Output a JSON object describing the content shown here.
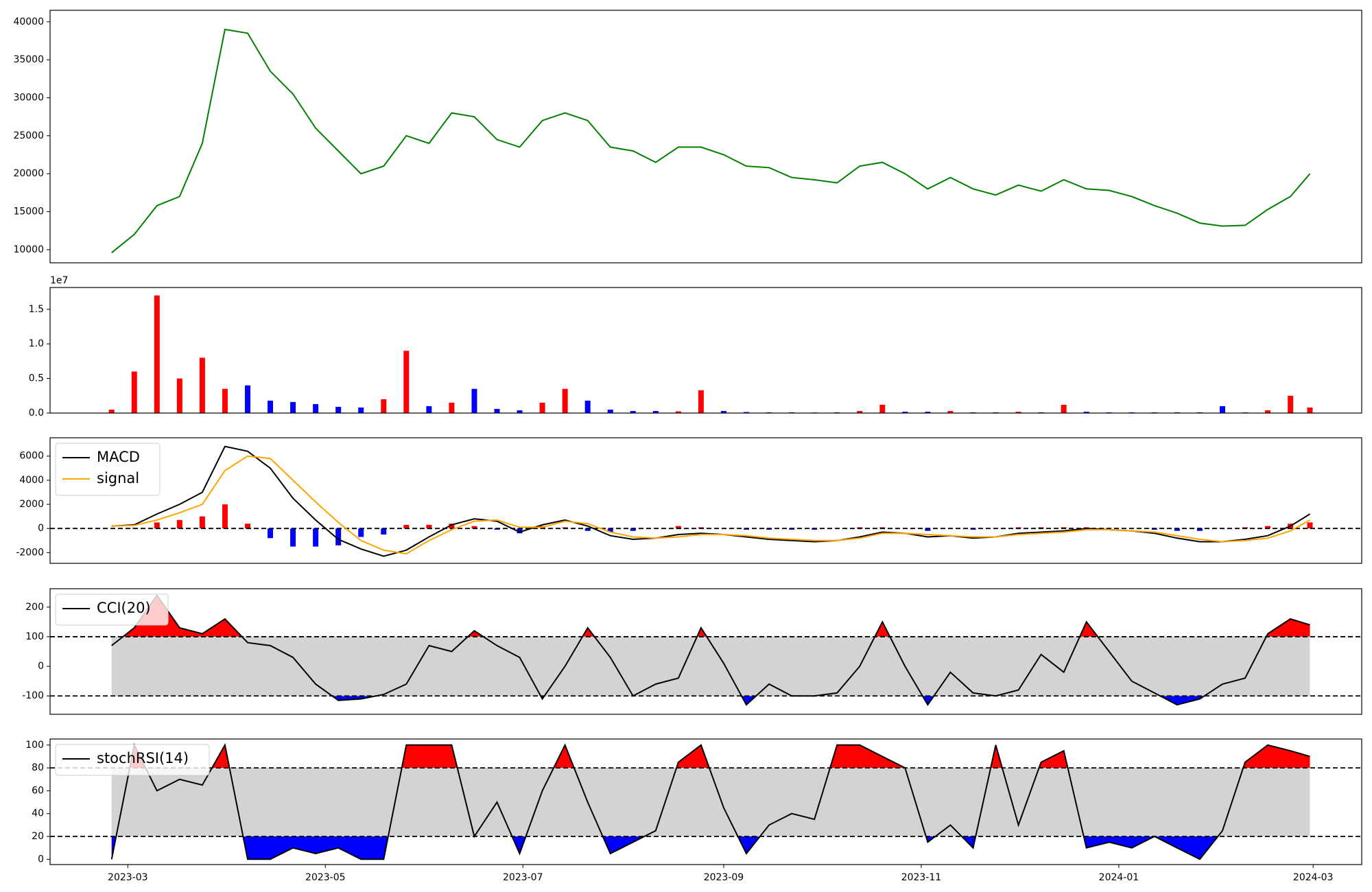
{
  "chart_data": [
    {
      "type": "line",
      "x": [
        "2023-02-24",
        "2023-03-03",
        "2023-03-10",
        "2023-03-17",
        "2023-03-24",
        "2023-03-31",
        "2023-04-07",
        "2023-04-14",
        "2023-04-21",
        "2023-04-28",
        "2023-05-05",
        "2023-05-12",
        "2023-05-19",
        "2023-05-26",
        "2023-06-02",
        "2023-06-09",
        "2023-06-16",
        "2023-06-23",
        "2023-06-30",
        "2023-07-07",
        "2023-07-14",
        "2023-07-21",
        "2023-07-28",
        "2023-08-04",
        "2023-08-11",
        "2023-08-18",
        "2023-08-25",
        "2023-09-01",
        "2023-09-08",
        "2023-09-15",
        "2023-09-22",
        "2023-09-29",
        "2023-10-06",
        "2023-10-13",
        "2023-10-20",
        "2023-10-27",
        "2023-11-03",
        "2023-11-10",
        "2023-11-17",
        "2023-11-24",
        "2023-12-01",
        "2023-12-08",
        "2023-12-15",
        "2023-12-22",
        "2023-12-29",
        "2024-01-05",
        "2024-01-12",
        "2024-01-19",
        "2024-01-26",
        "2024-02-02",
        "2024-02-09",
        "2024-02-16",
        "2024-02-23",
        "2024-02-29"
      ],
      "xlim": [
        "2023-02-05",
        "2024-03-16"
      ],
      "ylim": [
        8270,
        41520
      ],
      "yticks": [
        10000,
        15000,
        20000,
        25000,
        30000,
        35000,
        40000
      ],
      "series": [
        {
          "color": "green",
          "values": [
            9600,
            12000,
            15800,
            17000,
            24000,
            39000,
            38500,
            33500,
            30500,
            26000,
            23000,
            20000,
            21000,
            25000,
            24000,
            28000,
            27500,
            24500,
            23500,
            27000,
            28000,
            27000,
            23500,
            23000,
            21500,
            23500,
            23500,
            22500,
            21000,
            20800,
            19500,
            19200,
            18800,
            21000,
            21500,
            20000,
            18000,
            19500,
            18000,
            17200,
            18500,
            17700,
            19200,
            18000,
            17800,
            17000,
            15800,
            14800,
            13500,
            13100,
            13200,
            15300,
            17000,
            20000
          ]
        }
      ]
    },
    {
      "type": "bar",
      "x": [
        "2023-02-24",
        "2023-03-03",
        "2023-03-10",
        "2023-03-17",
        "2023-03-24",
        "2023-03-31",
        "2023-04-07",
        "2023-04-14",
        "2023-04-21",
        "2023-04-28",
        "2023-05-05",
        "2023-05-12",
        "2023-05-19",
        "2023-05-26",
        "2023-06-02",
        "2023-06-09",
        "2023-06-16",
        "2023-06-23",
        "2023-06-30",
        "2023-07-07",
        "2023-07-14",
        "2023-07-21",
        "2023-07-28",
        "2023-08-04",
        "2023-08-11",
        "2023-08-18",
        "2023-08-25",
        "2023-09-01",
        "2023-09-08",
        "2023-09-15",
        "2023-09-22",
        "2023-09-29",
        "2023-10-06",
        "2023-10-13",
        "2023-10-20",
        "2023-10-27",
        "2023-11-03",
        "2023-11-10",
        "2023-11-17",
        "2023-11-24",
        "2023-12-01",
        "2023-12-08",
        "2023-12-15",
        "2023-12-22",
        "2023-12-29",
        "2024-01-05",
        "2024-01-12",
        "2024-01-19",
        "2024-01-26",
        "2024-02-02",
        "2024-02-09",
        "2024-02-16",
        "2024-02-23",
        "2024-02-29"
      ],
      "xlim": [
        "2023-02-05",
        "2024-03-16"
      ],
      "ylim": [
        0,
        18150000
      ],
      "yticks": [
        {
          "value": 0,
          "label": "0.0"
        },
        {
          "value": 5000000,
          "label": "0.5"
        },
        {
          "value": 10000000,
          "label": "1.0"
        },
        {
          "value": 15000000,
          "label": "1.5"
        }
      ],
      "y_offset_label": "1e7",
      "up_color": "red",
      "down_color": "blue",
      "values": [
        500000,
        6000000,
        17000000,
        5000000,
        8000000,
        3500000,
        4000000,
        1800000,
        1600000,
        1300000,
        900000,
        800000,
        2000000,
        9000000,
        1000000,
        1500000,
        3500000,
        600000,
        400000,
        1500000,
        3500000,
        1800000,
        500000,
        300000,
        300000,
        250000,
        3300000,
        300000,
        150000,
        100000,
        100000,
        80000,
        100000,
        300000,
        1200000,
        200000,
        200000,
        300000,
        100000,
        100000,
        200000,
        100000,
        1200000,
        200000,
        100000,
        100000,
        100000,
        100000,
        100000,
        1000000,
        100000,
        400000,
        2500000,
        800000
      ]
    },
    {
      "type": "macd",
      "x": [
        "2023-02-24",
        "2023-03-03",
        "2023-03-10",
        "2023-03-17",
        "2023-03-24",
        "2023-03-31",
        "2023-04-07",
        "2023-04-14",
        "2023-04-21",
        "2023-04-28",
        "2023-05-05",
        "2023-05-12",
        "2023-05-19",
        "2023-05-26",
        "2023-06-02",
        "2023-06-09",
        "2023-06-16",
        "2023-06-23",
        "2023-06-30",
        "2023-07-07",
        "2023-07-14",
        "2023-07-21",
        "2023-07-28",
        "2023-08-04",
        "2023-08-11",
        "2023-08-18",
        "2023-08-25",
        "2023-09-01",
        "2023-09-08",
        "2023-09-15",
        "2023-09-22",
        "2023-09-29",
        "2023-10-06",
        "2023-10-13",
        "2023-10-20",
        "2023-10-27",
        "2023-11-03",
        "2023-11-10",
        "2023-11-17",
        "2023-11-24",
        "2023-12-01",
        "2023-12-08",
        "2023-12-15",
        "2023-12-22",
        "2023-12-29",
        "2024-01-05",
        "2024-01-12",
        "2024-01-19",
        "2024-01-26",
        "2024-02-02",
        "2024-02-09",
        "2024-02-16",
        "2024-02-23",
        "2024-02-29"
      ],
      "xlim": [
        "2023-02-05",
        "2024-03-16"
      ],
      "ylim": [
        -2890,
        7520
      ],
      "yticks": [
        -2000,
        0,
        2000,
        4000,
        6000
      ],
      "baseline": 0,
      "legend": "upper left",
      "series": [
        {
          "name": "MACD",
          "color": "black",
          "values": [
            200,
            300,
            1200,
            2000,
            3000,
            6800,
            6400,
            5000,
            2500,
            700,
            -900,
            -1700,
            -2300,
            -1800,
            -700,
            300,
            800,
            600,
            -300,
            300,
            700,
            200,
            -600,
            -900,
            -800,
            -500,
            -400,
            -500,
            -700,
            -900,
            -1000,
            -1100,
            -1000,
            -700,
            -300,
            -400,
            -700,
            -600,
            -800,
            -700,
            -400,
            -300,
            -200,
            0,
            -100,
            -200,
            -400,
            -800,
            -1100,
            -1100,
            -900,
            -600,
            200,
            1200
          ]
        },
        {
          "name": "signal",
          "color": "orange",
          "values": [
            200,
            250,
            700,
            1300,
            2000,
            4800,
            6000,
            5800,
            4000,
            2200,
            500,
            -1000,
            -1800,
            -2100,
            -1000,
            -100,
            600,
            700,
            100,
            100,
            600,
            400,
            -300,
            -700,
            -800,
            -700,
            -500,
            -500,
            -600,
            -800,
            -900,
            -1000,
            -1000,
            -800,
            -400,
            -400,
            -500,
            -600,
            -700,
            -700,
            -500,
            -400,
            -300,
            -100,
            -100,
            -200,
            -300,
            -600,
            -900,
            -1100,
            -1000,
            -800,
            -200,
            700
          ]
        }
      ],
      "histogram": {
        "pos_color": "red",
        "neg_color": "blue",
        "values": [
          0,
          50,
          500,
          700,
          1000,
          2000,
          400,
          -800,
          -1500,
          -1500,
          -1400,
          -700,
          -500,
          300,
          300,
          400,
          200,
          -100,
          -400,
          200,
          100,
          -200,
          -300,
          -200,
          0,
          200,
          100,
          0,
          -100,
          -100,
          -100,
          -100,
          0,
          100,
          100,
          0,
          -200,
          0,
          -100,
          0,
          100,
          100,
          100,
          100,
          0,
          0,
          -100,
          -200,
          -200,
          0,
          100,
          200,
          400,
          500
        ]
      }
    },
    {
      "type": "oscillator",
      "x": [
        "2023-02-24",
        "2023-03-03",
        "2023-03-10",
        "2023-03-17",
        "2023-03-24",
        "2023-03-31",
        "2023-04-07",
        "2023-04-14",
        "2023-04-21",
        "2023-04-28",
        "2023-05-05",
        "2023-05-12",
        "2023-05-19",
        "2023-05-26",
        "2023-06-02",
        "2023-06-09",
        "2023-06-16",
        "2023-06-23",
        "2023-06-30",
        "2023-07-07",
        "2023-07-14",
        "2023-07-21",
        "2023-07-28",
        "2023-08-04",
        "2023-08-11",
        "2023-08-18",
        "2023-08-25",
        "2023-09-01",
        "2023-09-08",
        "2023-09-15",
        "2023-09-22",
        "2023-09-29",
        "2023-10-06",
        "2023-10-13",
        "2023-10-20",
        "2023-10-27",
        "2023-11-03",
        "2023-11-10",
        "2023-11-17",
        "2023-11-24",
        "2023-12-01",
        "2023-12-08",
        "2023-12-15",
        "2023-12-22",
        "2023-12-29",
        "2024-01-05",
        "2024-01-12",
        "2024-01-19",
        "2024-01-26",
        "2024-02-02",
        "2024-02-09",
        "2024-02-16",
        "2024-02-23",
        "2024-02-29"
      ],
      "xlim": [
        "2023-02-05",
        "2024-03-16"
      ],
      "ylim": [
        -162,
        262
      ],
      "yticks": [
        -100,
        0,
        100,
        200
      ],
      "thresholds": [
        -100,
        100
      ],
      "band_color": "lightgray",
      "above_color": "red",
      "below_color": "blue",
      "legend": "upper left",
      "series": [
        {
          "name": "CCI(20)",
          "color": "black",
          "values": [
            70,
            130,
            240,
            130,
            110,
            160,
            80,
            70,
            30,
            -60,
            -115,
            -110,
            -95,
            -60,
            70,
            50,
            120,
            70,
            30,
            -110,
            0,
            130,
            30,
            -100,
            -60,
            -40,
            130,
            10,
            -130,
            -60,
            -100,
            -100,
            -90,
            0,
            150,
            0,
            -130,
            -20,
            -90,
            -100,
            -80,
            40,
            -20,
            150,
            50,
            -50,
            -90,
            -130,
            -110,
            -60,
            -40,
            110,
            160,
            140
          ]
        }
      ]
    },
    {
      "type": "oscillator",
      "x": [
        "2023-02-24",
        "2023-03-03",
        "2023-03-10",
        "2023-03-17",
        "2023-03-24",
        "2023-03-31",
        "2023-04-07",
        "2023-04-14",
        "2023-04-21",
        "2023-04-28",
        "2023-05-05",
        "2023-05-12",
        "2023-05-19",
        "2023-05-26",
        "2023-06-02",
        "2023-06-09",
        "2023-06-16",
        "2023-06-23",
        "2023-06-30",
        "2023-07-07",
        "2023-07-14",
        "2023-07-21",
        "2023-07-28",
        "2023-08-04",
        "2023-08-11",
        "2023-08-18",
        "2023-08-25",
        "2023-09-01",
        "2023-09-08",
        "2023-09-15",
        "2023-09-22",
        "2023-09-29",
        "2023-10-06",
        "2023-10-13",
        "2023-10-20",
        "2023-10-27",
        "2023-11-03",
        "2023-11-10",
        "2023-11-17",
        "2023-11-24",
        "2023-12-01",
        "2023-12-08",
        "2023-12-15",
        "2023-12-22",
        "2023-12-29",
        "2024-01-05",
        "2024-01-12",
        "2024-01-19",
        "2024-01-26",
        "2024-02-02",
        "2024-02-09",
        "2024-02-16",
        "2024-02-23",
        "2024-02-29"
      ],
      "xlim": [
        "2023-02-05",
        "2024-03-16"
      ],
      "xticks": [
        {
          "value": "2023-03-01",
          "label": "2023-03"
        },
        {
          "value": "2023-05-01",
          "label": "2023-05"
        },
        {
          "value": "2023-07-01",
          "label": "2023-07"
        },
        {
          "value": "2023-09-01",
          "label": "2023-09"
        },
        {
          "value": "2023-11-01",
          "label": "2023-11"
        },
        {
          "value": "2024-01-01",
          "label": "2024-01"
        },
        {
          "value": "2024-03-01",
          "label": "2024-03"
        }
      ],
      "ylim": [
        -4.6,
        105.3
      ],
      "yticks": [
        0,
        20,
        40,
        60,
        80,
        100
      ],
      "thresholds": [
        20,
        80
      ],
      "band_color": "lightgray",
      "above_color": "red",
      "below_color": "blue",
      "legend": "upper left",
      "series": [
        {
          "name": "stochRSI(14)",
          "color": "black",
          "values": [
            0,
            100,
            60,
            70,
            65,
            100,
            0,
            0,
            10,
            5,
            10,
            0,
            0,
            100,
            100,
            100,
            20,
            50,
            5,
            60,
            100,
            50,
            5,
            15,
            25,
            85,
            100,
            45,
            5,
            30,
            40,
            35,
            100,
            100,
            90,
            80,
            15,
            30,
            10,
            100,
            30,
            85,
            95,
            10,
            15,
            10,
            20,
            10,
            0,
            25,
            85,
            100,
            95,
            90
          ]
        }
      ]
    }
  ]
}
